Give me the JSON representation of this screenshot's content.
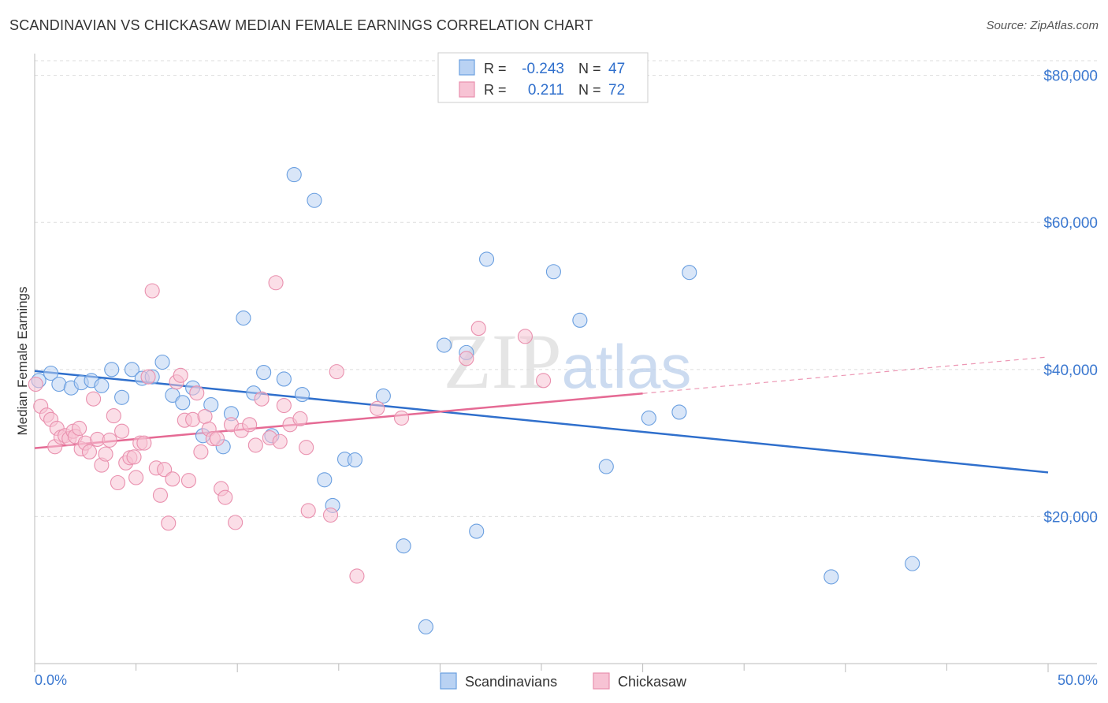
{
  "title": "SCANDINAVIAN VS CHICKASAW MEDIAN FEMALE EARNINGS CORRELATION CHART",
  "source": "Source: ZipAtlas.com",
  "chart_data": {
    "type": "scatter",
    "title": "SCANDINAVIAN VS CHICKASAW MEDIAN FEMALE EARNINGS CORRELATION CHART",
    "xlabel": "",
    "ylabel": "Median Female Earnings",
    "xlim": [
      0,
      50
    ],
    "ylim": [
      0,
      82000
    ],
    "x_tick_labels": [
      "0.0%",
      "50.0%"
    ],
    "y_ticks": [
      20000,
      40000,
      60000,
      80000
    ],
    "y_tick_labels": [
      "$20,000",
      "$40,000",
      "$60,000",
      "$80,000"
    ],
    "grid": true,
    "watermark": "ZIPatlas",
    "legend_stats": [
      {
        "r_label": "R =",
        "r_value": "-0.243",
        "n_label": "N =",
        "n_value": "47"
      },
      {
        "r_label": "R =",
        "r_value": "0.211",
        "n_label": "N =",
        "n_value": "72"
      }
    ],
    "series": [
      {
        "name": "Scandinavians",
        "color": "#6a9fe0",
        "fill": "#b9d2f3",
        "line_color": "#2f6fcc",
        "trend": {
          "x0": 0,
          "y0": 39800,
          "x1": 50,
          "y1": 26000,
          "dash_from": null
        },
        "points": [
          [
            0.2,
            38500
          ],
          [
            0.8,
            39500
          ],
          [
            1.2,
            38000
          ],
          [
            1.8,
            37500
          ],
          [
            2.3,
            38200
          ],
          [
            2.8,
            38500
          ],
          [
            3.3,
            37800
          ],
          [
            3.8,
            40000
          ],
          [
            4.3,
            36200
          ],
          [
            4.8,
            40000
          ],
          [
            5.3,
            38800
          ],
          [
            5.8,
            39000
          ],
          [
            6.3,
            41000
          ],
          [
            6.8,
            36500
          ],
          [
            7.3,
            35500
          ],
          [
            7.8,
            37500
          ],
          [
            8.3,
            31000
          ],
          [
            8.7,
            35200
          ],
          [
            9.3,
            29500
          ],
          [
            9.7,
            34000
          ],
          [
            10.3,
            47000
          ],
          [
            10.8,
            36800
          ],
          [
            11.3,
            39600
          ],
          [
            11.7,
            31000
          ],
          [
            12.3,
            38700
          ],
          [
            12.8,
            66500
          ],
          [
            13.2,
            36600
          ],
          [
            13.8,
            63000
          ],
          [
            14.3,
            25000
          ],
          [
            14.7,
            21500
          ],
          [
            15.3,
            27800
          ],
          [
            15.8,
            27700
          ],
          [
            17.2,
            36400
          ],
          [
            18.2,
            16000
          ],
          [
            19.3,
            5000
          ],
          [
            20.2,
            43300
          ],
          [
            21.3,
            42300
          ],
          [
            21.8,
            18000
          ],
          [
            22.3,
            55000
          ],
          [
            25.6,
            53300
          ],
          [
            26.9,
            46700
          ],
          [
            28.2,
            26800
          ],
          [
            30.3,
            33400
          ],
          [
            31.8,
            34200
          ],
          [
            32.3,
            53200
          ],
          [
            39.3,
            11800
          ],
          [
            43.3,
            13600
          ]
        ]
      },
      {
        "name": "Chickasaw",
        "color": "#e990ae",
        "fill": "#f7c3d4",
        "line_color": "#e56a94",
        "trend": {
          "x0": 0,
          "y0": 29300,
          "x1": 50,
          "y1": 41700,
          "dash_from": 30
        },
        "points": [
          [
            0.3,
            35000
          ],
          [
            0.6,
            33800
          ],
          [
            0.8,
            33200
          ],
          [
            1.0,
            29500
          ],
          [
            1.1,
            32000
          ],
          [
            1.3,
            30800
          ],
          [
            1.5,
            31000
          ],
          [
            1.7,
            30600
          ],
          [
            1.9,
            31600
          ],
          [
            2.0,
            30900
          ],
          [
            2.2,
            32000
          ],
          [
            2.3,
            29200
          ],
          [
            2.5,
            30000
          ],
          [
            2.7,
            28800
          ],
          [
            2.9,
            36000
          ],
          [
            3.1,
            30500
          ],
          [
            3.3,
            27000
          ],
          [
            3.5,
            28500
          ],
          [
            3.7,
            30400
          ],
          [
            3.9,
            33700
          ],
          [
            4.1,
            24600
          ],
          [
            4.3,
            31600
          ],
          [
            4.5,
            27300
          ],
          [
            4.7,
            28000
          ],
          [
            4.9,
            28100
          ],
          [
            5.0,
            25300
          ],
          [
            5.2,
            30000
          ],
          [
            5.4,
            30000
          ],
          [
            5.6,
            39000
          ],
          [
            5.8,
            50700
          ],
          [
            6.0,
            26600
          ],
          [
            6.2,
            22900
          ],
          [
            6.4,
            26400
          ],
          [
            6.6,
            19100
          ],
          [
            6.8,
            25100
          ],
          [
            7.0,
            38300
          ],
          [
            7.2,
            39200
          ],
          [
            7.4,
            33100
          ],
          [
            7.6,
            24900
          ],
          [
            7.8,
            33200
          ],
          [
            8.0,
            36800
          ],
          [
            8.2,
            28800
          ],
          [
            8.4,
            33600
          ],
          [
            8.6,
            31900
          ],
          [
            8.8,
            30600
          ],
          [
            9.0,
            30600
          ],
          [
            9.2,
            23800
          ],
          [
            9.4,
            22600
          ],
          [
            9.7,
            32500
          ],
          [
            9.9,
            19200
          ],
          [
            10.2,
            31700
          ],
          [
            10.6,
            32500
          ],
          [
            10.9,
            29700
          ],
          [
            11.2,
            36000
          ],
          [
            11.6,
            30700
          ],
          [
            11.9,
            51800
          ],
          [
            12.1,
            30200
          ],
          [
            12.3,
            35100
          ],
          [
            12.6,
            32500
          ],
          [
            13.1,
            33300
          ],
          [
            13.4,
            29400
          ],
          [
            13.5,
            20800
          ],
          [
            14.6,
            20200
          ],
          [
            14.9,
            39700
          ],
          [
            15.9,
            11900
          ],
          [
            16.9,
            34700
          ],
          [
            18.1,
            33400
          ],
          [
            21.3,
            41500
          ],
          [
            21.9,
            45600
          ],
          [
            24.2,
            44500
          ],
          [
            25.1,
            38500
          ],
          [
            0.05,
            38000
          ]
        ]
      }
    ]
  }
}
